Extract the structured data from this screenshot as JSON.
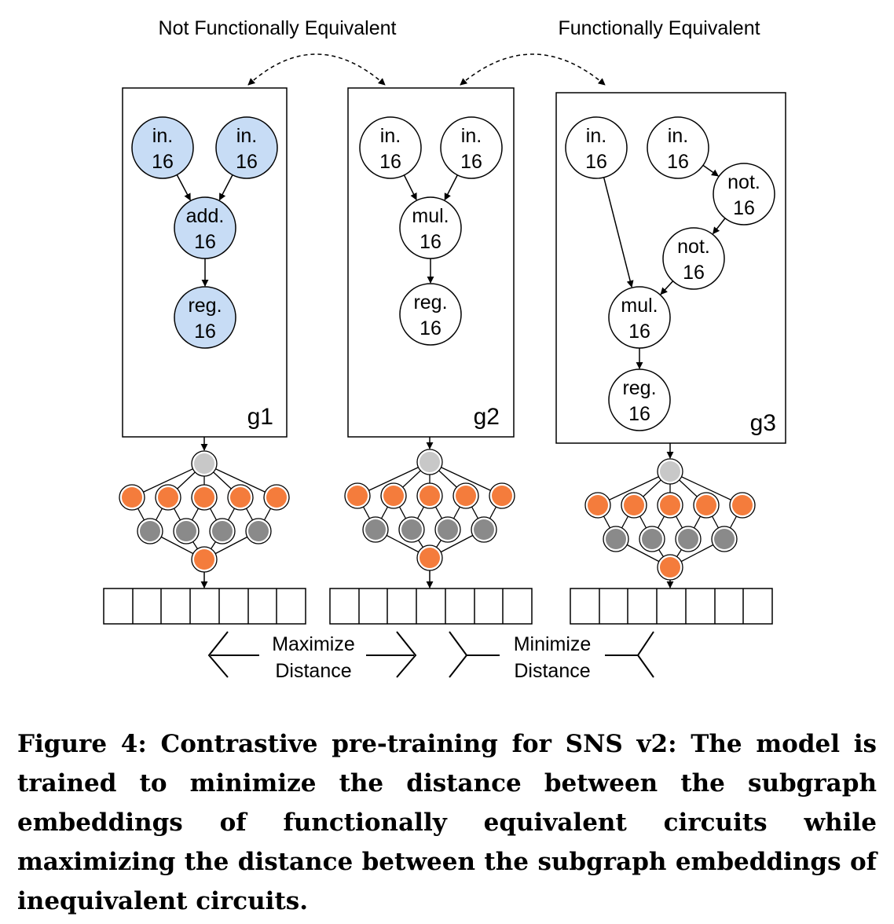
{
  "labels": {
    "not_equivalent": "Not Functionally Equivalent",
    "equivalent": "Functionally Equivalent",
    "maximize_1": "Maximize",
    "maximize_2": "Distance",
    "minimize_1": "Minimize",
    "minimize_2": "Distance"
  },
  "graphs": [
    {
      "id": "g1",
      "label": "g1",
      "filled": true,
      "nodes": [
        {
          "id": "a",
          "l1": "in.",
          "l2": "16"
        },
        {
          "id": "b",
          "l1": "in.",
          "l2": "16"
        },
        {
          "id": "c",
          "l1": "add.",
          "l2": "16"
        },
        {
          "id": "d",
          "l1": "reg.",
          "l2": "16"
        }
      ],
      "edges": [
        [
          "a",
          "c"
        ],
        [
          "b",
          "c"
        ],
        [
          "c",
          "d"
        ]
      ]
    },
    {
      "id": "g2",
      "label": "g2",
      "filled": false,
      "nodes": [
        {
          "id": "a",
          "l1": "in.",
          "l2": "16"
        },
        {
          "id": "b",
          "l1": "in.",
          "l2": "16"
        },
        {
          "id": "c",
          "l1": "mul.",
          "l2": "16"
        },
        {
          "id": "d",
          "l1": "reg.",
          "l2": "16"
        }
      ],
      "edges": [
        [
          "a",
          "c"
        ],
        [
          "b",
          "c"
        ],
        [
          "c",
          "d"
        ]
      ]
    },
    {
      "id": "g3",
      "label": "g3",
      "filled": false,
      "nodes": [
        {
          "id": "a",
          "l1": "in.",
          "l2": "16"
        },
        {
          "id": "b",
          "l1": "in.",
          "l2": "16"
        },
        {
          "id": "n1",
          "l1": "not.",
          "l2": "16"
        },
        {
          "id": "n2",
          "l1": "not.",
          "l2": "16"
        },
        {
          "id": "c",
          "l1": "mul.",
          "l2": "16"
        },
        {
          "id": "d",
          "l1": "reg.",
          "l2": "16"
        }
      ],
      "edges": [
        [
          "a",
          "c"
        ],
        [
          "b",
          "n1"
        ],
        [
          "n1",
          "n2"
        ],
        [
          "n2",
          "c"
        ],
        [
          "c",
          "d"
        ]
      ]
    }
  ],
  "colors": {
    "node_fill": "#c7dcf5",
    "orange": "#f47c3c",
    "dark_gray": "#8a8a8a",
    "light_gray": "#c8c8c8"
  },
  "caption": "Figure 4: Contrastive pre-training for SNS v2: The model is trained to minimize the distance between the subgraph embeddings of functionally equivalent circuits while maximizing the distance between the subgraph embeddings of inequivalent circuits."
}
